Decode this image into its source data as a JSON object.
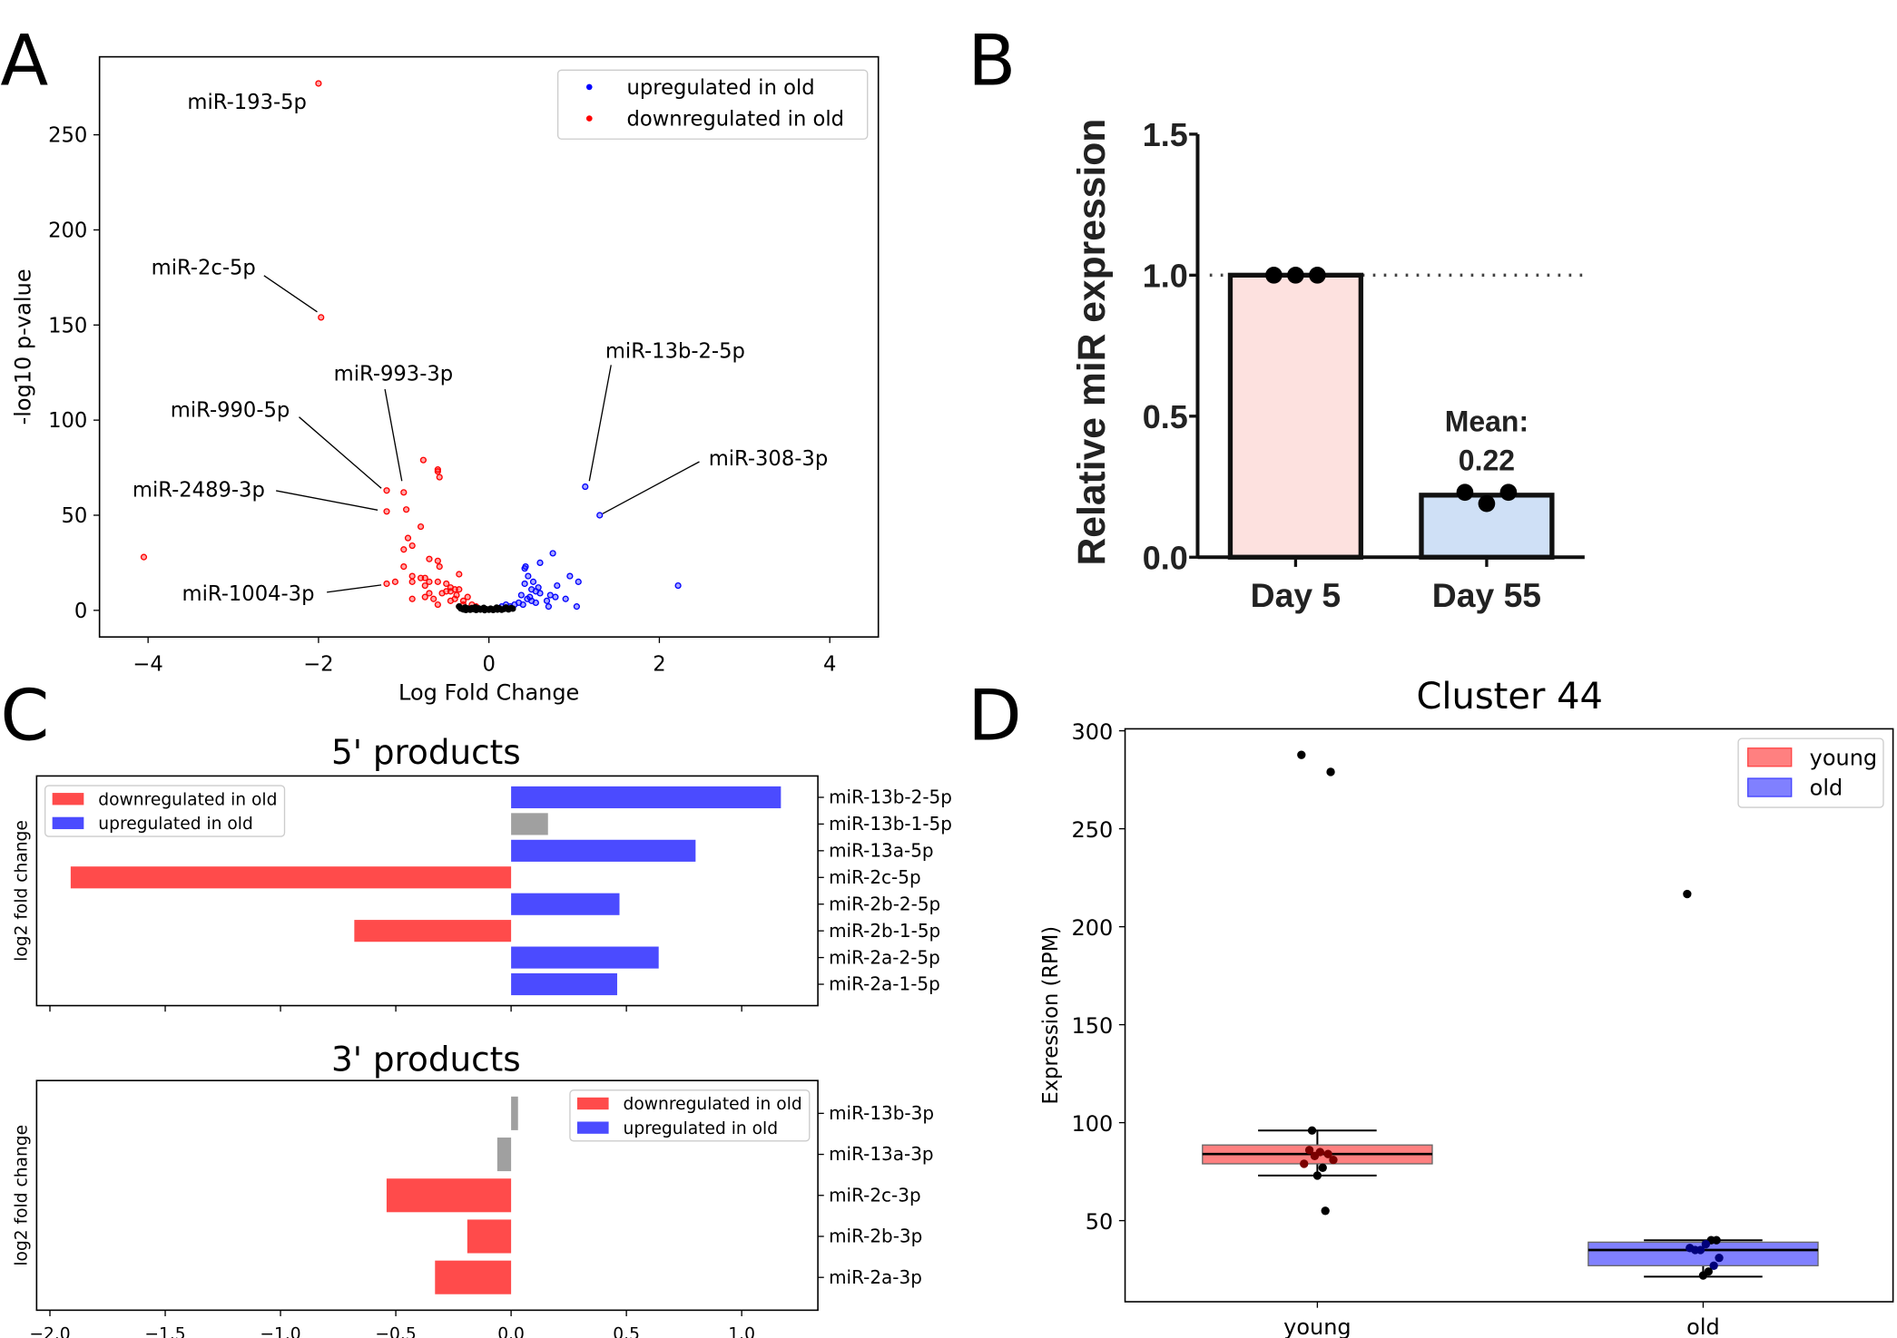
{
  "panel_letters": [
    "A",
    "B",
    "C",
    "D"
  ],
  "chart_data": [
    {
      "panel": "A",
      "type": "scatter",
      "xlabel": "Log Fold Change",
      "ylabel": "-log10 p-value",
      "xlim": [
        -4.57,
        4.57
      ],
      "ylim": [
        -14,
        291
      ],
      "xticks": [
        -4,
        -2,
        0,
        2,
        4
      ],
      "yticks": [
        0,
        50,
        100,
        150,
        200,
        250
      ],
      "legend": {
        "position": "top-right",
        "entries": [
          "upregulated in old",
          "downregulated in old"
        ]
      },
      "colors": {
        "up": "#0000ff",
        "down": "#ff0000",
        "ns": "#000000"
      },
      "series": [
        {
          "name": "upregulated in old",
          "color": "#0000ff",
          "points": [
            [
              1.13,
              65
            ],
            [
              1.3,
              50
            ],
            [
              2.22,
              13
            ],
            [
              0.75,
              30
            ],
            [
              0.6,
              25
            ],
            [
              0.42,
              22
            ],
            [
              0.43,
              23
            ],
            [
              0.95,
              18
            ],
            [
              1.05,
              15
            ],
            [
              0.46,
              18
            ],
            [
              0.52,
              15
            ],
            [
              0.42,
              14
            ],
            [
              0.8,
              13
            ],
            [
              0.5,
              11
            ],
            [
              0.55,
              10
            ],
            [
              0.6,
              9
            ],
            [
              0.38,
              8
            ],
            [
              0.72,
              8
            ],
            [
              0.78,
              7
            ],
            [
              0.9,
              6
            ],
            [
              0.45,
              6
            ],
            [
              0.5,
              5
            ],
            [
              0.55,
              4
            ],
            [
              0.68,
              5
            ],
            [
              0.3,
              3
            ],
            [
              0.4,
              3
            ],
            [
              0.2,
              3
            ],
            [
              0.25,
              2
            ],
            [
              0.7,
              2
            ],
            [
              1.03,
              2
            ],
            [
              0.15,
              2
            ],
            [
              0.35,
              4
            ],
            [
              0.48,
              7
            ],
            [
              0.58,
              12
            ]
          ]
        },
        {
          "name": "downregulated in old",
          "color": "#ff0000",
          "points": [
            [
              -2.0,
              277
            ],
            [
              -1.97,
              154
            ],
            [
              -1.0,
              62
            ],
            [
              -1.2,
              63
            ],
            [
              -1.2,
              52
            ],
            [
              -1.2,
              14
            ],
            [
              -4.05,
              28
            ],
            [
              -0.77,
              79
            ],
            [
              -0.6,
              74
            ],
            [
              -0.6,
              73
            ],
            [
              -0.58,
              70
            ],
            [
              -0.97,
              53
            ],
            [
              -0.8,
              44
            ],
            [
              -0.95,
              38
            ],
            [
              -0.9,
              34
            ],
            [
              -1.0,
              32
            ],
            [
              -0.7,
              27
            ],
            [
              -0.6,
              26
            ],
            [
              -0.58,
              23
            ],
            [
              -1.0,
              23
            ],
            [
              -0.35,
              19
            ],
            [
              -1.1,
              15
            ],
            [
              -0.9,
              18
            ],
            [
              -0.8,
              17
            ],
            [
              -0.75,
              17
            ],
            [
              -0.7,
              15
            ],
            [
              -0.9,
              15
            ],
            [
              -0.75,
              13
            ],
            [
              -0.6,
              15
            ],
            [
              -0.5,
              14
            ],
            [
              -0.5,
              10
            ],
            [
              -0.45,
              12
            ],
            [
              -0.4,
              11
            ],
            [
              -0.35,
              11
            ],
            [
              -0.55,
              9
            ],
            [
              -0.7,
              9
            ],
            [
              -0.75,
              7
            ],
            [
              -0.65,
              6
            ],
            [
              -0.9,
              6
            ],
            [
              -0.6,
              3
            ],
            [
              -0.45,
              5
            ],
            [
              -0.4,
              6
            ],
            [
              -0.3,
              5
            ],
            [
              -0.25,
              7
            ],
            [
              -0.2,
              3
            ],
            [
              -0.15,
              2
            ],
            [
              -0.3,
              3
            ],
            [
              -0.35,
              2
            ],
            [
              -0.45,
              10
            ],
            [
              -0.38,
              8
            ]
          ]
        },
        {
          "name": "",
          "color": "#000000",
          "points": [
            [
              -0.35,
              2
            ],
            [
              -0.33,
              1
            ],
            [
              -0.3,
              0.5
            ],
            [
              -0.28,
              1.5
            ],
            [
              -0.25,
              1
            ],
            [
              -0.22,
              0.3
            ],
            [
              -0.2,
              1.2
            ],
            [
              -0.18,
              0.6
            ],
            [
              -0.15,
              0.2
            ],
            [
              -0.12,
              1
            ],
            [
              -0.1,
              0.4
            ],
            [
              -0.08,
              0.8
            ],
            [
              -0.05,
              0.1
            ],
            [
              -0.03,
              0.6
            ],
            [
              0,
              0.3
            ],
            [
              0.02,
              0.9
            ],
            [
              0.05,
              0.2
            ],
            [
              0.07,
              0.7
            ],
            [
              0.1,
              0.4
            ],
            [
              0.12,
              1.1
            ],
            [
              0.15,
              0.3
            ],
            [
              0.18,
              0.8
            ],
            [
              0.2,
              1.5
            ],
            [
              0.23,
              0.5
            ],
            [
              0.26,
              1.2
            ],
            [
              0.28,
              0.9
            ],
            [
              -0.27,
              0.2
            ],
            [
              -0.16,
              1.6
            ],
            [
              0.09,
              1.4
            ],
            [
              -0.06,
              1.3
            ]
          ]
        }
      ],
      "annotations": [
        {
          "text": "miR-193-5p",
          "x": -2.0,
          "y": 277
        },
        {
          "text": "miR-2c-5p",
          "x": -1.97,
          "y": 154
        },
        {
          "text": "miR-993-3p",
          "x": -1.0,
          "y": 62
        },
        {
          "text": "miR-990-5p",
          "x": -1.2,
          "y": 63
        },
        {
          "text": "miR-2489-3p",
          "x": -1.2,
          "y": 52
        },
        {
          "text": "miR-1004-3p",
          "x": -1.2,
          "y": 14
        },
        {
          "text": "miR-13b-2-5p",
          "x": 1.13,
          "y": 65
        },
        {
          "text": "miR-308-3p",
          "x": 1.3,
          "y": 50
        }
      ]
    },
    {
      "panel": "B",
      "type": "bar",
      "ylabel": "Relative miR expression",
      "ylim": [
        0,
        1.5
      ],
      "yticks": [
        "0.0",
        "0.5",
        "1.0",
        "1.5"
      ],
      "categories": [
        "Day 5",
        "Day 55"
      ],
      "values": [
        1.0,
        0.22
      ],
      "colors": [
        "#fde1df",
        "#cfe0f6"
      ],
      "points": [
        [
          1.0,
          1.0,
          1.0
        ],
        [
          0.23,
          0.19,
          0.23
        ]
      ],
      "reference_line": 1.0,
      "annotation": {
        "line1": "Mean:",
        "line2": "0.22"
      }
    },
    {
      "panel": "C",
      "type": "bar",
      "orientation": "horizontal",
      "title": "5' products",
      "ylabel": "log2 fold change",
      "xlim": [
        -2.07,
        1.33
      ],
      "xticks": [
        -2.0,
        -1.5,
        -1.0,
        -0.5,
        0.0,
        0.5,
        1.0
      ],
      "categories": [
        "miR-13b-2-5p",
        "miR-13b-1-5p",
        "miR-13a-5p",
        "miR-2c-5p",
        "miR-2b-2-5p",
        "miR-2b-1-5p",
        "miR-2a-2-5p",
        "miR-2a-1-5p"
      ],
      "values": [
        1.17,
        0.16,
        0.8,
        -1.91,
        0.47,
        -0.68,
        0.64,
        0.46
      ],
      "status": [
        "up",
        "ns",
        "up",
        "down",
        "up",
        "down",
        "up",
        "up"
      ],
      "legend": {
        "position": "top-left",
        "entries": [
          "downregulated in old",
          "upregulated in old"
        ]
      }
    },
    {
      "panel": "C",
      "type": "bar",
      "orientation": "horizontal",
      "title": "3' products",
      "ylabel": "log2 fold change",
      "xlim": [
        -2.07,
        1.33
      ],
      "xticks": [
        -2.0,
        -1.5,
        -1.0,
        -0.5,
        0.0,
        0.5,
        1.0
      ],
      "xticklabels": [
        "−2.0",
        "−1.5",
        "−1.0",
        "−0.5",
        "0.0",
        "0.5",
        "1.0"
      ],
      "categories": [
        "miR-13b-3p",
        "miR-13a-3p",
        "miR-2c-3p",
        "miR-2b-3p",
        "miR-2a-3p"
      ],
      "values": [
        0.03,
        -0.06,
        -0.54,
        -0.19,
        -0.33
      ],
      "status": [
        "ns",
        "ns",
        "down",
        "down",
        "down"
      ],
      "legend": {
        "position": "top-right",
        "entries": [
          "downregulated in old",
          "upregulated in old"
        ]
      }
    },
    {
      "panel": "D",
      "type": "box",
      "title": "Cluster 44",
      "ylabel": "Expression (RPM)",
      "ylim": [
        8.6,
        301
      ],
      "yticks": [
        50,
        100,
        150,
        200,
        250,
        300
      ],
      "categories": [
        "young",
        "old"
      ],
      "colors": [
        "#ff8080",
        "#8080ff"
      ],
      "boxes": [
        {
          "q1": 79,
          "median": 84,
          "q3": 88.6,
          "whisker_low": 73,
          "whisker_high": 96
        },
        {
          "q1": 27,
          "median": 35,
          "q3": 39,
          "whisker_low": 21.4,
          "whisker_high": 40
        }
      ],
      "points": [
        [
          287.7,
          279,
          55,
          85,
          83,
          86,
          79,
          81,
          84,
          77,
          73,
          96
        ],
        [
          216.7,
          40,
          40,
          38,
          35,
          35,
          36,
          31,
          27,
          24,
          22
        ]
      ],
      "legend": {
        "position": "top-right",
        "entries": [
          "young",
          "old"
        ]
      }
    }
  ],
  "colors": {
    "bar_down": "#ff4b4b",
    "bar_up": "#4b4bff",
    "bar_ns": "#a0a0a0"
  }
}
